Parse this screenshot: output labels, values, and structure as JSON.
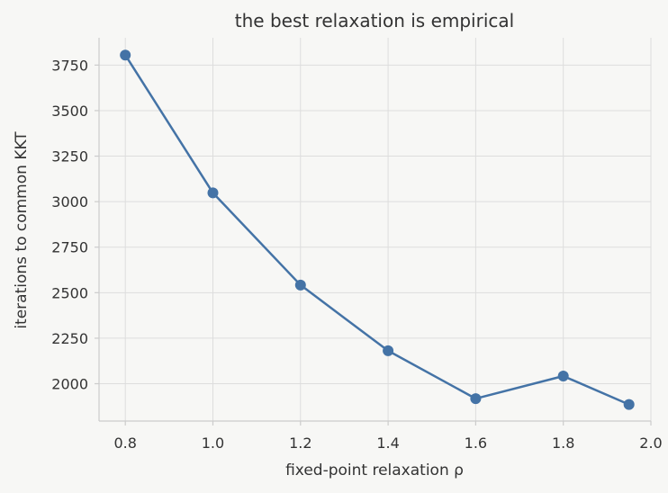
{
  "chart_data": {
    "type": "line",
    "title": "the best relaxation is empirical",
    "xlabel": "fixed-point relaxation ρ",
    "ylabel": "iterations to common KKT",
    "xlim": [
      0.74,
      2.0
    ],
    "ylim": [
      1795,
      3900
    ],
    "xticks": [
      0.8,
      1.0,
      1.2,
      1.4,
      1.6,
      1.8,
      2.0
    ],
    "xtick_labels": [
      "0.8",
      "1.0",
      "1.2",
      "1.4",
      "1.6",
      "1.8",
      "2.0"
    ],
    "yticks": [
      2000,
      2250,
      2500,
      2750,
      3000,
      3250,
      3500,
      3750
    ],
    "ytick_labels": [
      "2000",
      "2250",
      "2500",
      "2750",
      "3000",
      "3250",
      "3500",
      "3750"
    ],
    "grid": true,
    "series": [
      {
        "color": "#4473a6",
        "x": [
          0.8,
          1.0,
          1.2,
          1.4,
          1.6,
          1.8,
          1.95
        ],
        "y": [
          3805,
          3048,
          2542,
          2181,
          1918,
          2042,
          1886
        ]
      }
    ]
  }
}
